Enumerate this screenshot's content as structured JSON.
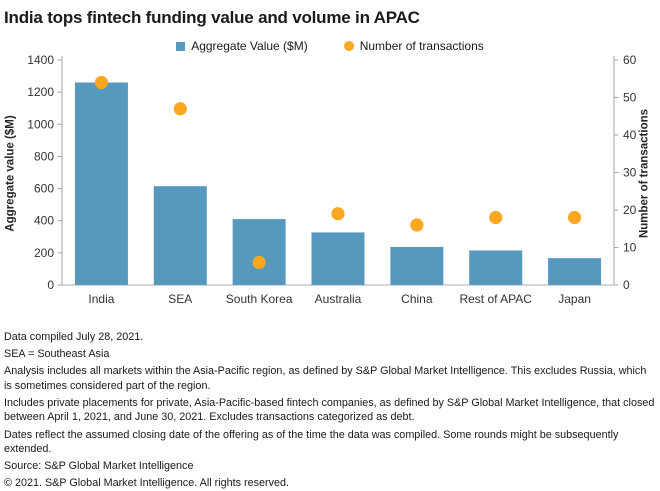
{
  "title": "India tops fintech funding value and volume in APAC",
  "legend": {
    "value_label": "Aggregate Value ($M)",
    "transactions_label": "Number of transactions"
  },
  "colors": {
    "bar": "#5698BE",
    "dot": "#FBA820",
    "axis_line": "#A6A6A6",
    "baseline": "#C8C8C8",
    "tick_text": "#333333"
  },
  "chart_data": {
    "type": "bar",
    "categories": [
      "India",
      "SEA",
      "South Korea",
      "Australia",
      "China",
      "Rest of APAC",
      "Japan"
    ],
    "series": [
      {
        "name": "Aggregate Value ($M)",
        "type": "bar",
        "axis": "left",
        "values": [
          1260,
          615,
          410,
          327,
          237,
          215,
          167
        ]
      },
      {
        "name": "Number of transactions",
        "type": "scatter",
        "axis": "right",
        "values": [
          54,
          47,
          6,
          19,
          16,
          18,
          18
        ]
      }
    ],
    "title": "India tops fintech funding value and volume in APAC",
    "xlabel": "",
    "ylabel_left": "Aggregate value ($M)",
    "ylabel_right": "Number of transactions",
    "ylim_left": [
      0,
      1400
    ],
    "ytick_step_left": 200,
    "ylim_right": [
      0,
      60
    ],
    "ytick_step_right": 10,
    "grid": false,
    "legend_position": "top-center"
  },
  "footnotes": [
    "Data compiled July 28, 2021.",
    "SEA = Southeast Asia",
    "Analysis includes all markets within the Asia-Pacific region, as defined by S&P Global Market Intelligence. This excludes Russia, which is sometimes considered part of the region.",
    "Includes private placements for private, Asia-Pacific-based fintech companies, as defined by S&P Global Market Intelligence, that closed between April 1, 2021, and June 30, 2021. Excludes transactions categorized as debt.",
    "Dates reflect the assumed closing date of the offering as of the time the data was compiled. Some rounds might be subsequently extended.",
    "Source: S&P Global Market Intelligence",
    "© 2021. S&P Global Market Intelligence. All rights reserved."
  ]
}
